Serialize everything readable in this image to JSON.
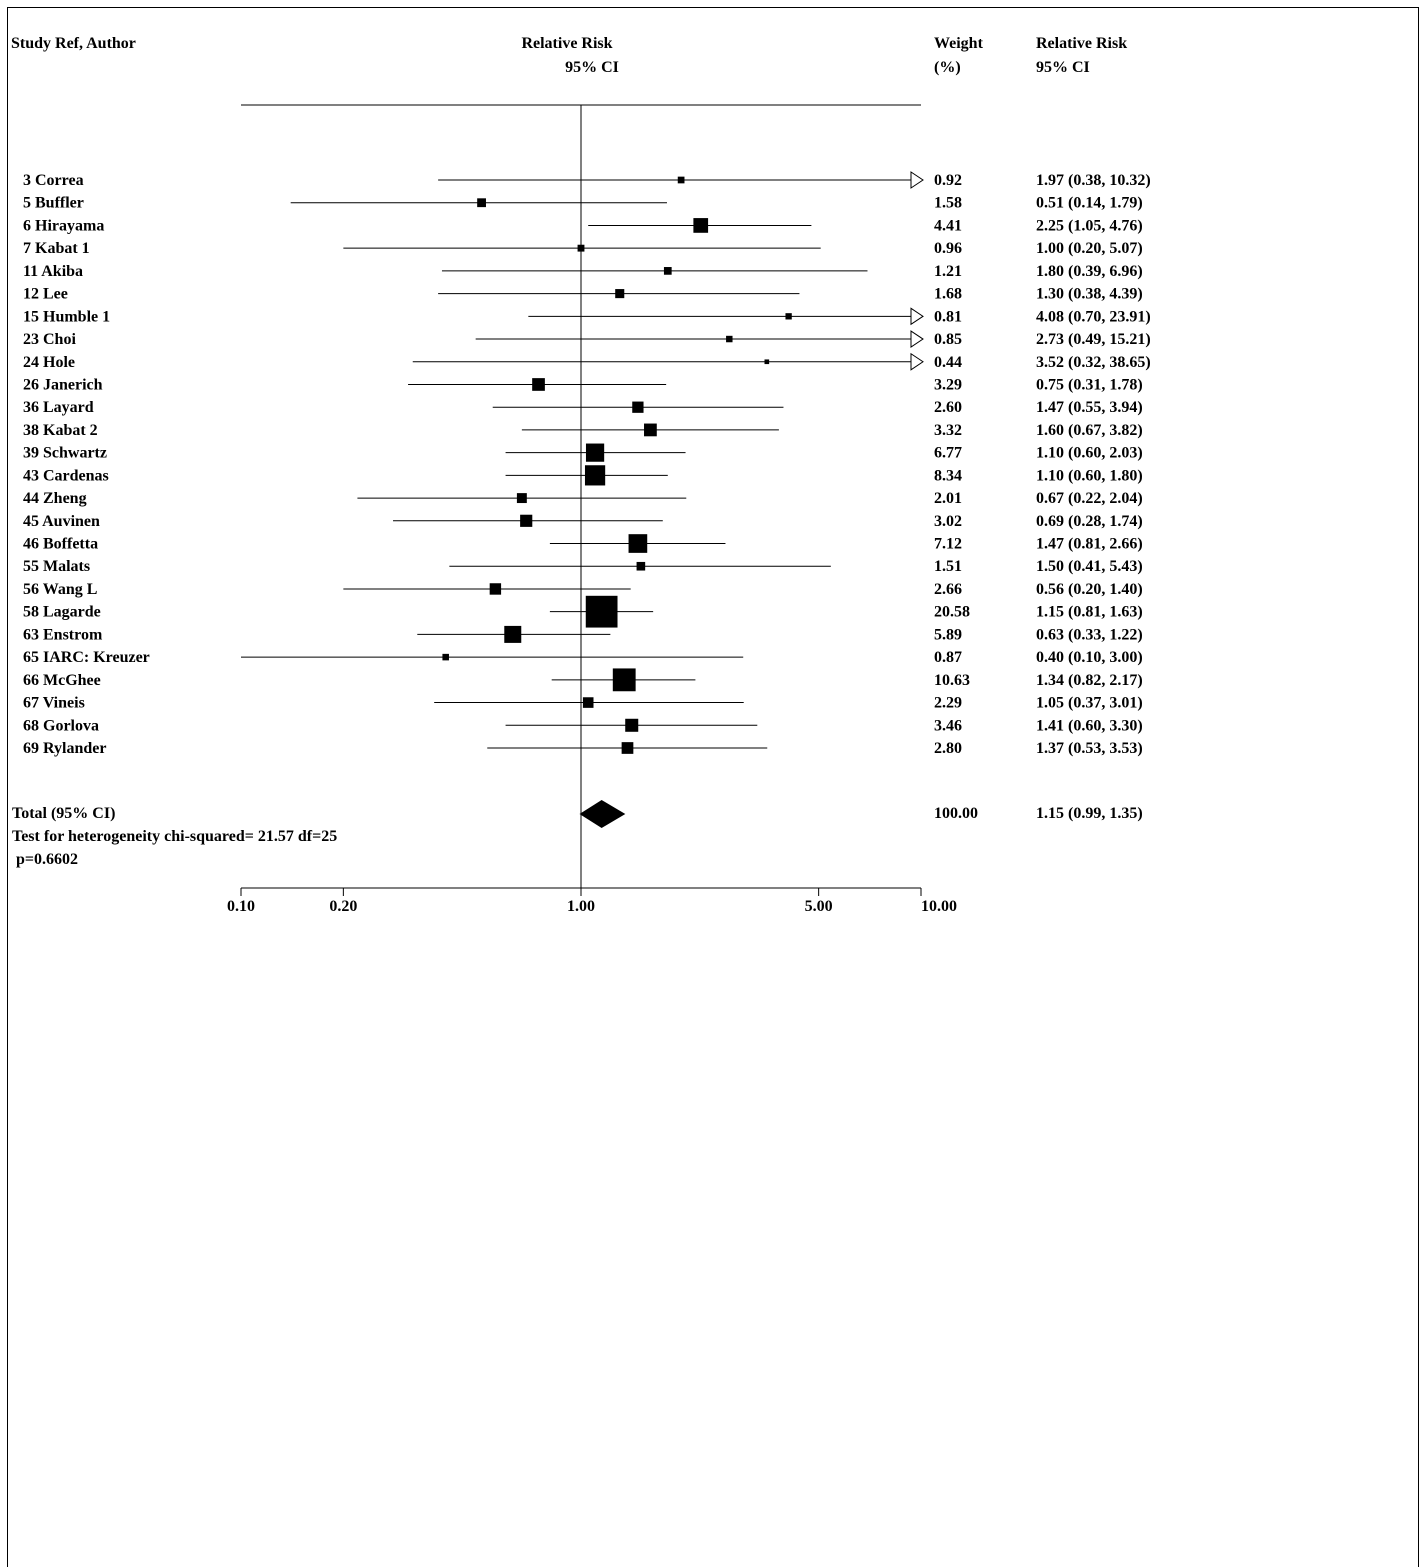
{
  "headers": {
    "study": "Study Ref, Author",
    "rr_line1": "Relative Risk",
    "rr_line2": "95% CI",
    "weight_line1": "Weight",
    "weight_line2": "(%)",
    "rrci_line1": "Relative Risk",
    "rrci_line2": "95% CI"
  },
  "footer": {
    "total_label": "Total (95% CI)",
    "heterogeneity": "Test for heterogeneity chi-squared= 21.57 df=25",
    "p_value": "p=0.6602"
  },
  "chart_data": {
    "type": "forest",
    "x_scale": "log",
    "xlim": [
      0.1,
      10
    ],
    "x_ticks": [
      {
        "value": 0.1,
        "label": "0.10"
      },
      {
        "value": 0.2,
        "label": "0.20"
      },
      {
        "value": 1,
        "label": "1.00"
      },
      {
        "value": 5,
        "label": "5.00"
      },
      {
        "value": 10,
        "label": "10.00"
      }
    ],
    "reference_line": 1.0,
    "studies": [
      {
        "label": "3 Correa",
        "rr": 1.97,
        "lo": 0.38,
        "hi": 10.32,
        "weight": 0.92,
        "weight_text": "0.92",
        "ci_text": "1.97 (0.38, 10.32)"
      },
      {
        "label": "5 Buffler",
        "rr": 0.51,
        "lo": 0.14,
        "hi": 1.79,
        "weight": 1.58,
        "weight_text": "1.58",
        "ci_text": "0.51 (0.14, 1.79)"
      },
      {
        "label": "6 Hirayama",
        "rr": 2.25,
        "lo": 1.05,
        "hi": 4.76,
        "weight": 4.41,
        "weight_text": "4.41",
        "ci_text": "2.25 (1.05, 4.76)"
      },
      {
        "label": "7 Kabat 1",
        "rr": 1.0,
        "lo": 0.2,
        "hi": 5.07,
        "weight": 0.96,
        "weight_text": "0.96",
        "ci_text": "1.00 (0.20, 5.07)"
      },
      {
        "label": "11 Akiba",
        "rr": 1.8,
        "lo": 0.39,
        "hi": 6.96,
        "weight": 1.21,
        "weight_text": "1.21",
        "ci_text": "1.80 (0.39, 6.96)"
      },
      {
        "label": "12 Lee",
        "rr": 1.3,
        "lo": 0.38,
        "hi": 4.39,
        "weight": 1.68,
        "weight_text": "1.68",
        "ci_text": "1.30 (0.38, 4.39)"
      },
      {
        "label": "15 Humble 1",
        "rr": 4.08,
        "lo": 0.7,
        "hi": 23.91,
        "weight": 0.81,
        "weight_text": "0.81",
        "ci_text": "4.08 (0.70, 23.91)"
      },
      {
        "label": "23 Choi",
        "rr": 2.73,
        "lo": 0.49,
        "hi": 15.21,
        "weight": 0.85,
        "weight_text": "0.85",
        "ci_text": "2.73 (0.49, 15.21)"
      },
      {
        "label": "24 Hole",
        "rr": 3.52,
        "lo": 0.32,
        "hi": 38.65,
        "weight": 0.44,
        "weight_text": "0.44",
        "ci_text": "3.52 (0.32, 38.65)"
      },
      {
        "label": "26 Janerich",
        "rr": 0.75,
        "lo": 0.31,
        "hi": 1.78,
        "weight": 3.29,
        "weight_text": "3.29",
        "ci_text": "0.75 (0.31, 1.78)"
      },
      {
        "label": "36 Layard",
        "rr": 1.47,
        "lo": 0.55,
        "hi": 3.94,
        "weight": 2.6,
        "weight_text": "2.60",
        "ci_text": "1.47 (0.55, 3.94)"
      },
      {
        "label": "38 Kabat 2",
        "rr": 1.6,
        "lo": 0.67,
        "hi": 3.82,
        "weight": 3.32,
        "weight_text": "3.32",
        "ci_text": "1.60 (0.67, 3.82)"
      },
      {
        "label": "39 Schwartz",
        "rr": 1.1,
        "lo": 0.6,
        "hi": 2.03,
        "weight": 6.77,
        "weight_text": "6.77",
        "ci_text": "1.10 (0.60, 2.03)"
      },
      {
        "label": "43 Cardenas",
        "rr": 1.1,
        "lo": 0.6,
        "hi": 1.8,
        "weight": 8.34,
        "weight_text": "8.34",
        "ci_text": "1.10 (0.60, 1.80)"
      },
      {
        "label": "44 Zheng",
        "rr": 0.67,
        "lo": 0.22,
        "hi": 2.04,
        "weight": 2.01,
        "weight_text": "2.01",
        "ci_text": "0.67 (0.22, 2.04)"
      },
      {
        "label": "45 Auvinen",
        "rr": 0.69,
        "lo": 0.28,
        "hi": 1.74,
        "weight": 3.02,
        "weight_text": "3.02",
        "ci_text": "0.69 (0.28, 1.74)"
      },
      {
        "label": "46 Boffetta",
        "rr": 1.47,
        "lo": 0.81,
        "hi": 2.66,
        "weight": 7.12,
        "weight_text": "7.12",
        "ci_text": "1.47 (0.81, 2.66)"
      },
      {
        "label": "55 Malats",
        "rr": 1.5,
        "lo": 0.41,
        "hi": 5.43,
        "weight": 1.51,
        "weight_text": "1.51",
        "ci_text": "1.50 (0.41, 5.43)"
      },
      {
        "label": "56 Wang L",
        "rr": 0.56,
        "lo": 0.2,
        "hi": 1.4,
        "weight": 2.66,
        "weight_text": "2.66",
        "ci_text": "0.56 (0.20, 1.40)"
      },
      {
        "label": "58 Lagarde",
        "rr": 1.15,
        "lo": 0.81,
        "hi": 1.63,
        "weight": 20.58,
        "weight_text": "20.58",
        "ci_text": "1.15 (0.81, 1.63)"
      },
      {
        "label": "63 Enstrom",
        "rr": 0.63,
        "lo": 0.33,
        "hi": 1.22,
        "weight": 5.89,
        "weight_text": "5.89",
        "ci_text": "0.63 (0.33, 1.22)"
      },
      {
        "label": "65 IARC: Kreuzer",
        "rr": 0.4,
        "lo": 0.1,
        "hi": 3.0,
        "weight": 0.87,
        "weight_text": "0.87",
        "ci_text": "0.40 (0.10, 3.00)"
      },
      {
        "label": "66 McGhee",
        "rr": 1.34,
        "lo": 0.82,
        "hi": 2.17,
        "weight": 10.63,
        "weight_text": "10.63",
        "ci_text": "1.34 (0.82, 2.17)"
      },
      {
        "label": "67 Vineis",
        "rr": 1.05,
        "lo": 0.37,
        "hi": 3.01,
        "weight": 2.29,
        "weight_text": "2.29",
        "ci_text": "1.05 (0.37, 3.01)"
      },
      {
        "label": "68 Gorlova",
        "rr": 1.41,
        "lo": 0.6,
        "hi": 3.3,
        "weight": 3.46,
        "weight_text": "3.46",
        "ci_text": "1.41 (0.60, 3.30)"
      },
      {
        "label": "69 Rylander",
        "rr": 1.37,
        "lo": 0.53,
        "hi": 3.53,
        "weight": 2.8,
        "weight_text": "2.80",
        "ci_text": "1.37 (0.53, 3.53)"
      }
    ],
    "total": {
      "rr": 1.15,
      "lo": 0.99,
      "hi": 1.35,
      "weight": 100.0,
      "weight_text": "100.00",
      "ci_text": "1.15 (0.99, 1.35)"
    }
  }
}
